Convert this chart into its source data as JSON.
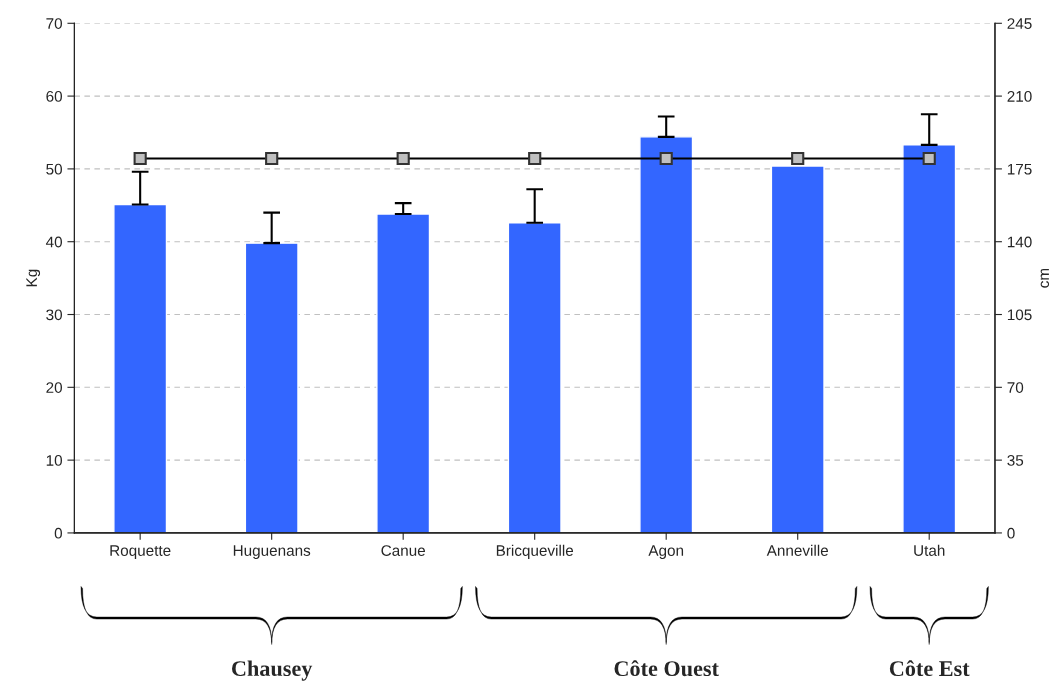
{
  "chart_data": {
    "type": "bar",
    "ylabel": "Kg",
    "y2label": "cm",
    "categories": [
      "Roquette",
      "Huguenans",
      "Canue",
      "Bricqueville",
      "Agon",
      "Anneville",
      "Utah"
    ],
    "series": [
      {
        "color": "#3366ff",
        "values": [
          45.1,
          39.8,
          43.8,
          42.6,
          54.4,
          50.4,
          53.3
        ],
        "errors": [
          [
            45.1,
            49.6
          ],
          [
            39.8,
            44.0
          ],
          [
            43.8,
            45.3
          ],
          [
            42.6,
            47.2
          ],
          [
            54.4,
            57.2
          ],
          null,
          [
            53.3,
            57.5
          ]
        ]
      },
      {
        "type": "line",
        "axis": "y2",
        "color": "#000000",
        "marker": "square",
        "values": [
          180,
          180,
          180,
          180,
          180,
          180,
          180
        ]
      }
    ],
    "ylim": [
      0,
      70
    ],
    "yticks": [
      0,
      10,
      20,
      30,
      40,
      50,
      60,
      70
    ],
    "y2lim": [
      0,
      245
    ],
    "y2ticks": [
      0,
      35,
      70,
      105,
      140,
      175,
      210,
      245
    ],
    "grid": "y",
    "annotations": [
      "Chausey",
      "Côte Ouest",
      "Côte Est"
    ]
  }
}
